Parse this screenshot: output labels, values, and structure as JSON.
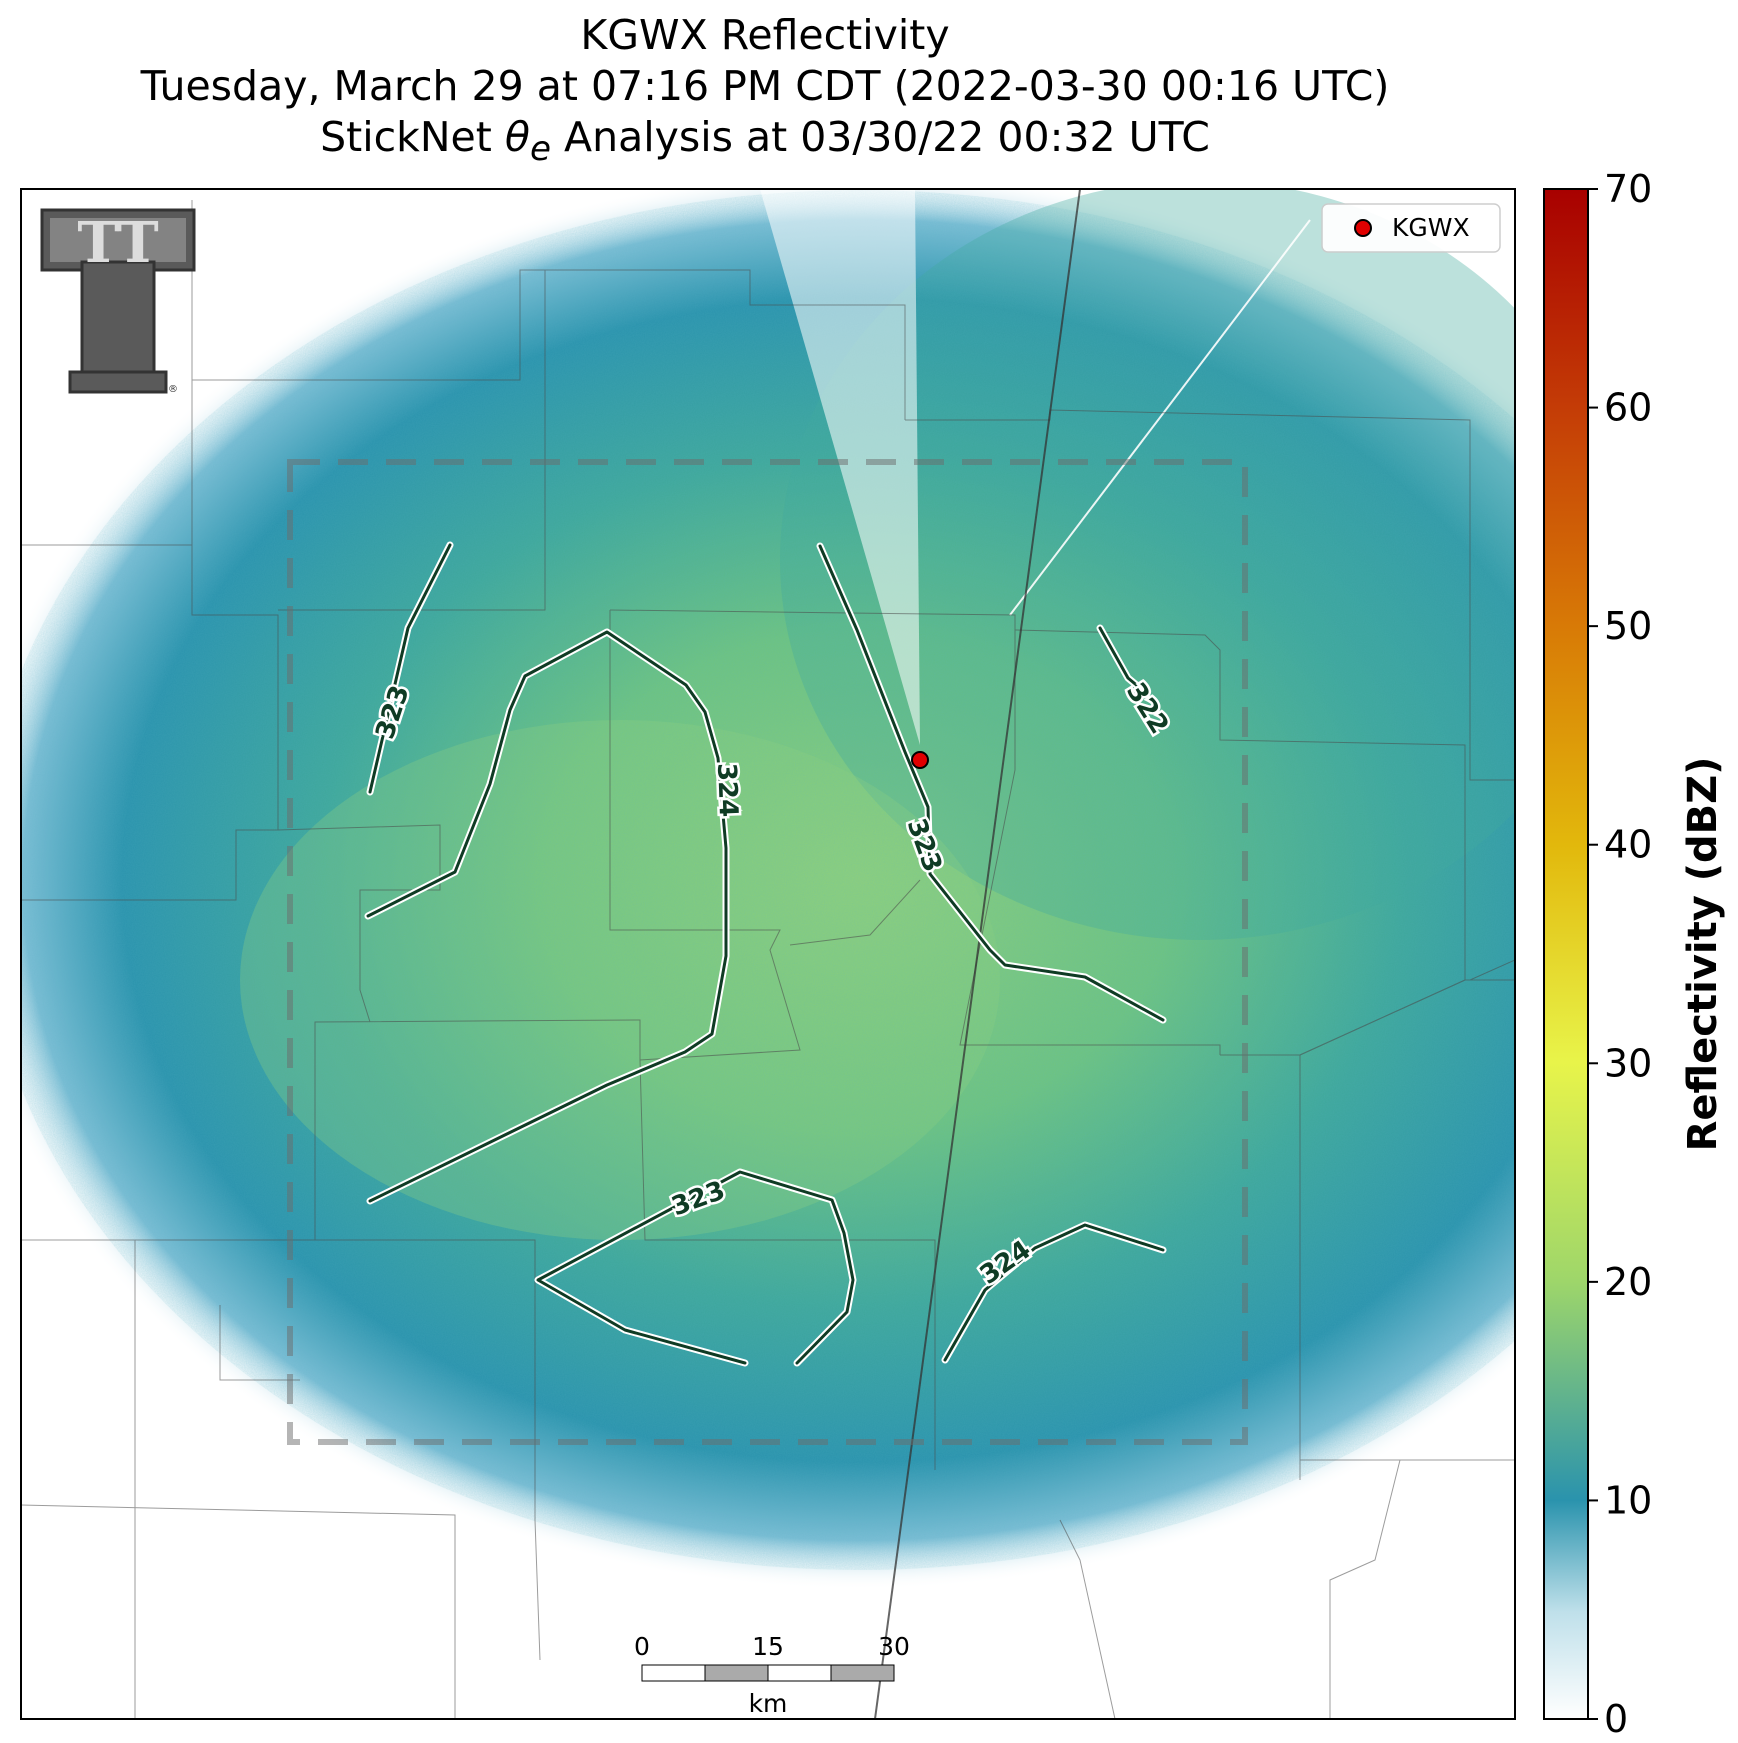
{
  "title": {
    "line1": "KGWX Reflectivity",
    "line2": "Tuesday, March 29 at 07:16 PM CDT (2022-03-30 00:16 UTC)",
    "line3_prefix": "StickNet ",
    "line3_symbol": "θ",
    "line3_sub": "e",
    "line3_suffix": " Analysis at 03/30/22 00:32 UTC"
  },
  "legend": {
    "marker_label": "KGWX",
    "marker_color": "#e00000"
  },
  "colorbar": {
    "label": "Reflectivity (dBZ)",
    "ticks": [
      "0",
      "10",
      "20",
      "30",
      "40",
      "50",
      "60",
      "70"
    ],
    "range": [
      0,
      70
    ],
    "colors": [
      "#ffffff",
      "#2a93ad",
      "#9ed66a",
      "#e8f44a",
      "#e2b80c",
      "#d87a06",
      "#c43c06",
      "#a80000"
    ]
  },
  "contours": {
    "color": "#0f3b24",
    "labels": [
      "323",
      "324",
      "323",
      "322",
      "323",
      "324"
    ]
  },
  "scalebar": {
    "ticks": [
      "0",
      "15",
      "30"
    ],
    "unit": "km"
  },
  "logo": {
    "letters": "TT",
    "registered": "®"
  }
}
